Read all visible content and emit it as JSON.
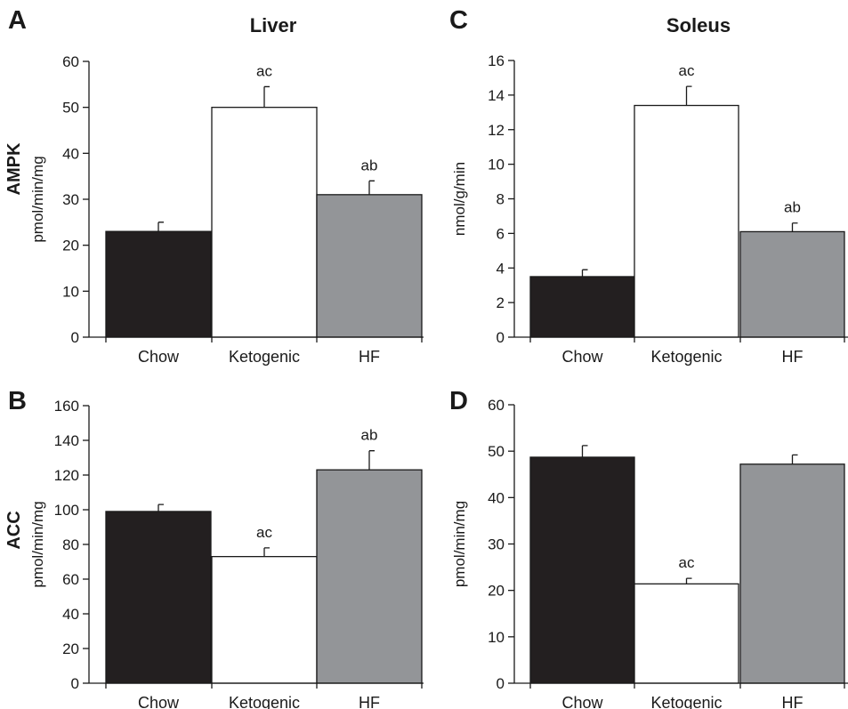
{
  "col_titles": [
    "Liver",
    "Soleus"
  ],
  "row_labels": [
    "AMPK",
    "ACC"
  ],
  "colors": {
    "Chow": "#231f20",
    "Ketogenic": "#ffffff",
    "HF": "#939598"
  },
  "chart_data": [
    {
      "panel": "A",
      "type": "bar",
      "categories": [
        "Chow",
        "Ketogenic",
        "HF"
      ],
      "values": [
        23,
        50,
        31
      ],
      "errors": [
        2,
        4.5,
        3
      ],
      "annotations": [
        "",
        "ac",
        "ab"
      ],
      "ylabel": "pmol/min/mg",
      "ylim": [
        0,
        60
      ],
      "yticks": [
        0,
        10,
        20,
        30,
        40,
        50,
        60
      ]
    },
    {
      "panel": "C",
      "type": "bar",
      "categories": [
        "Chow",
        "Ketogenic",
        "HF"
      ],
      "values": [
        3.5,
        13.4,
        6.1
      ],
      "errors": [
        0.4,
        1.1,
        0.5
      ],
      "annotations": [
        "",
        "ac",
        "ab"
      ],
      "ylabel": "nmol/g/min",
      "ylim": [
        0,
        16
      ],
      "yticks": [
        0,
        2,
        4,
        6,
        8,
        10,
        12,
        14,
        16
      ]
    },
    {
      "panel": "B",
      "type": "bar",
      "categories": [
        "Chow",
        "Ketogenic",
        "HF"
      ],
      "values": [
        99,
        73,
        123
      ],
      "errors": [
        4,
        5,
        11
      ],
      "annotations": [
        "",
        "ac",
        "ab"
      ],
      "ylabel": "pmol/min/mg",
      "ylim": [
        0,
        160
      ],
      "yticks": [
        0,
        20,
        40,
        60,
        80,
        100,
        120,
        140,
        160
      ]
    },
    {
      "panel": "D",
      "type": "bar",
      "categories": [
        "Chow",
        "Ketogenic",
        "HF"
      ],
      "values": [
        48.7,
        21.4,
        47.2
      ],
      "errors": [
        2.5,
        1.2,
        2
      ],
      "annotations": [
        "",
        "ac",
        ""
      ],
      "ylabel": "pmol/min/mg",
      "ylim": [
        0,
        60
      ],
      "yticks": [
        0,
        10,
        20,
        30,
        40,
        50,
        60
      ]
    }
  ]
}
